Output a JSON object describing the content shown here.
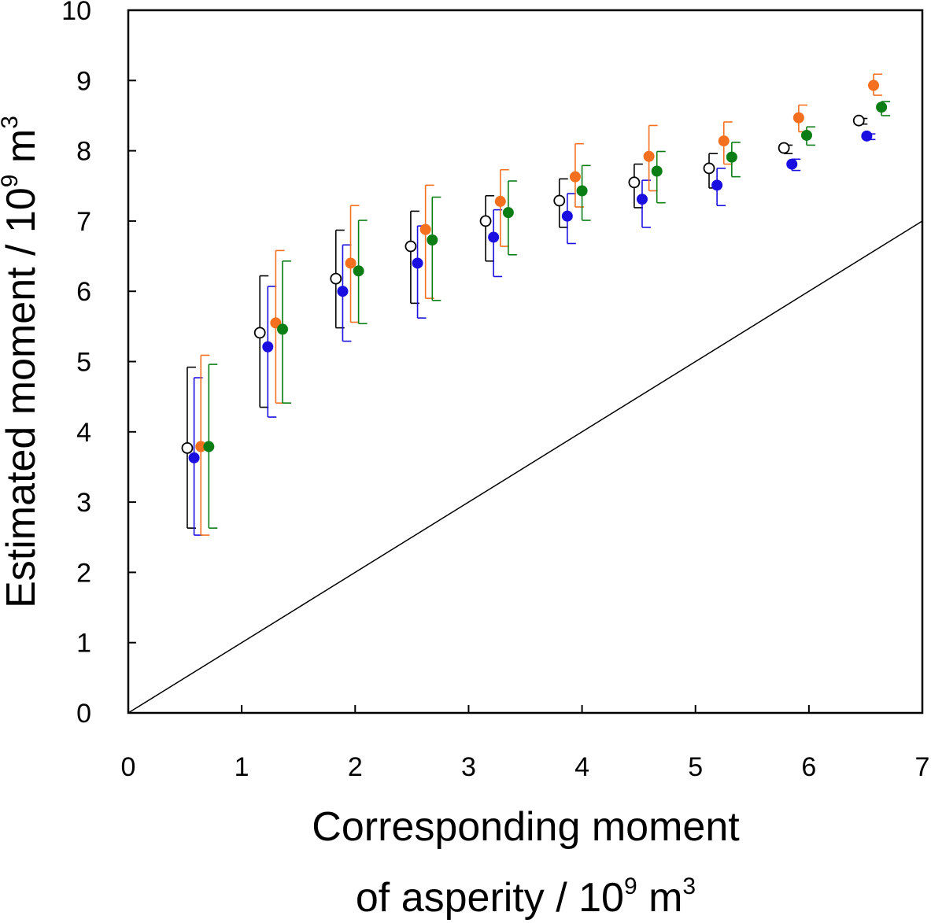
{
  "chart_data": {
    "type": "scatter",
    "title": "",
    "xlabel": "Corresponding moment",
    "xlabel_line2": "of asperity / 10",
    "xlabel_exp": "9",
    "xlabel_unit": " m",
    "xlabel_unit_exp": "3",
    "ylabel": "Estimated moment / 10",
    "ylabel_exp": "9",
    "ylabel_unit": " m",
    "ylabel_unit_exp": "3",
    "xlim": [
      0,
      7
    ],
    "ylim": [
      0,
      10
    ],
    "xticks": [
      "0",
      "1",
      "2",
      "3",
      "4",
      "5",
      "6",
      "7"
    ],
    "yticks": [
      "0",
      "1",
      "2",
      "3",
      "4",
      "5",
      "6",
      "7",
      "8",
      "9",
      "10"
    ],
    "grid": false,
    "legend": "none",
    "reference_line": {
      "x": [
        0,
        7
      ],
      "y": [
        0,
        7
      ],
      "color": "#000000"
    },
    "series": [
      {
        "marker": "open-circle",
        "color": "#000000",
        "x": [
          0.52,
          1.16,
          1.83,
          2.49,
          3.15,
          3.8,
          4.46,
          5.12,
          5.78,
          6.44
        ],
        "y": [
          3.77,
          5.41,
          6.18,
          6.64,
          7.0,
          7.29,
          7.55,
          7.75,
          8.04,
          8.43
        ],
        "err_low": [
          2.63,
          4.35,
          5.48,
          5.83,
          6.43,
          6.91,
          7.19,
          7.47,
          7.96,
          8.38
        ],
        "err_high": [
          4.92,
          6.22,
          6.87,
          7.14,
          7.36,
          7.6,
          7.81,
          7.96,
          8.08,
          8.46
        ]
      },
      {
        "marker": "filled-circle",
        "color": "#1a0fe0",
        "x": [
          0.58,
          1.23,
          1.89,
          2.55,
          3.22,
          3.87,
          4.53,
          5.19,
          5.85,
          6.51
        ],
        "y": [
          3.63,
          5.21,
          6.0,
          6.4,
          6.77,
          7.07,
          7.31,
          7.51,
          7.81,
          8.21
        ],
        "err_low": [
          2.53,
          4.21,
          5.29,
          5.62,
          6.21,
          6.68,
          6.91,
          7.22,
          7.72,
          8.16
        ],
        "err_high": [
          4.77,
          6.07,
          6.66,
          6.93,
          7.16,
          7.39,
          7.58,
          7.75,
          7.88,
          8.24
        ]
      },
      {
        "marker": "filled-circle",
        "color": "#f4701f",
        "x": [
          0.64,
          1.3,
          1.96,
          2.62,
          3.28,
          3.94,
          4.59,
          5.25,
          5.91,
          6.57
        ],
        "y": [
          3.79,
          5.55,
          6.4,
          6.88,
          7.28,
          7.63,
          7.92,
          8.14,
          8.47,
          8.93
        ],
        "err_low": [
          2.53,
          4.41,
          5.56,
          5.9,
          6.64,
          7.2,
          7.43,
          7.81,
          8.27,
          8.79
        ],
        "err_high": [
          5.09,
          6.58,
          7.22,
          7.51,
          7.73,
          8.1,
          8.36,
          8.41,
          8.65,
          9.09
        ]
      },
      {
        "marker": "filled-circle",
        "color": "#0a7d14",
        "x": [
          0.71,
          1.36,
          2.03,
          2.68,
          3.35,
          4.0,
          4.66,
          5.32,
          5.98,
          6.64
        ],
        "y": [
          3.79,
          5.46,
          6.29,
          6.73,
          7.12,
          7.43,
          7.71,
          7.91,
          8.22,
          8.62
        ],
        "err_low": [
          2.63,
          4.41,
          5.54,
          5.87,
          6.52,
          7.01,
          7.26,
          7.63,
          8.08,
          8.5
        ],
        "err_high": [
          4.96,
          6.43,
          7.01,
          7.34,
          7.57,
          7.79,
          7.99,
          8.12,
          8.34,
          8.7
        ]
      }
    ]
  }
}
